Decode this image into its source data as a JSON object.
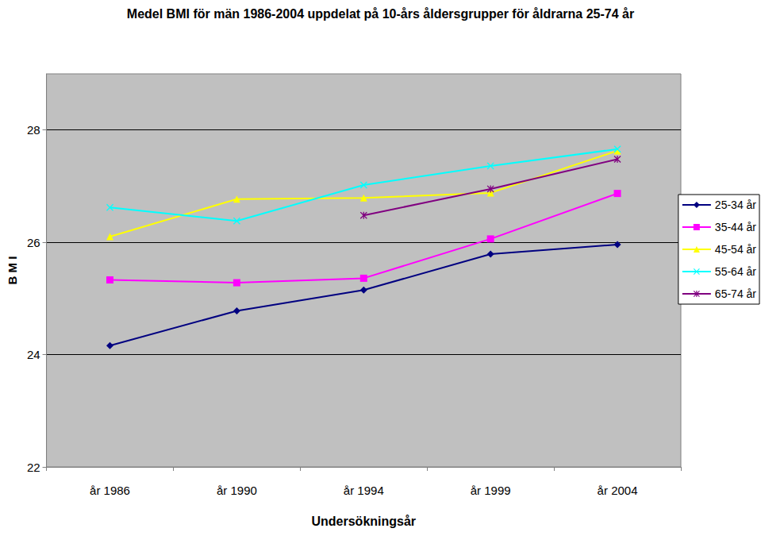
{
  "chart_data": {
    "type": "line",
    "title": "Medel BMI för män 1986-2004 uppdelat på 10-års åldersgrupper för åldrarna 25-74 år",
    "x_label": "Undersökningsår",
    "y_label": "B M I",
    "categories": [
      "år 1986",
      "år 1990",
      "år 1994",
      "år 1999",
      "år 2004"
    ],
    "series": [
      {
        "name": "25-34 år",
        "color": "#000080",
        "marker": "diamond",
        "values": [
          24.16,
          24.78,
          25.15,
          25.79,
          25.96
        ]
      },
      {
        "name": "35-44 år",
        "color": "#FF00FF",
        "marker": "square",
        "values": [
          25.33,
          25.28,
          25.36,
          26.06,
          26.87
        ]
      },
      {
        "name": "45-54 år",
        "color": "#FFFF00",
        "marker": "triangle",
        "values": [
          26.1,
          26.77,
          26.79,
          26.88,
          27.63
        ]
      },
      {
        "name": "55-64 år",
        "color": "#00FFFF",
        "marker": "x",
        "values": [
          26.62,
          26.38,
          27.02,
          27.36,
          27.66
        ]
      },
      {
        "name": "65-74 år",
        "color": "#800080",
        "marker": "star",
        "values": [
          null,
          null,
          26.48,
          26.95,
          27.48
        ]
      }
    ],
    "ylim": [
      22,
      29
    ],
    "yticks": [
      22,
      24,
      26,
      28
    ],
    "grid": true,
    "legend": "right"
  }
}
